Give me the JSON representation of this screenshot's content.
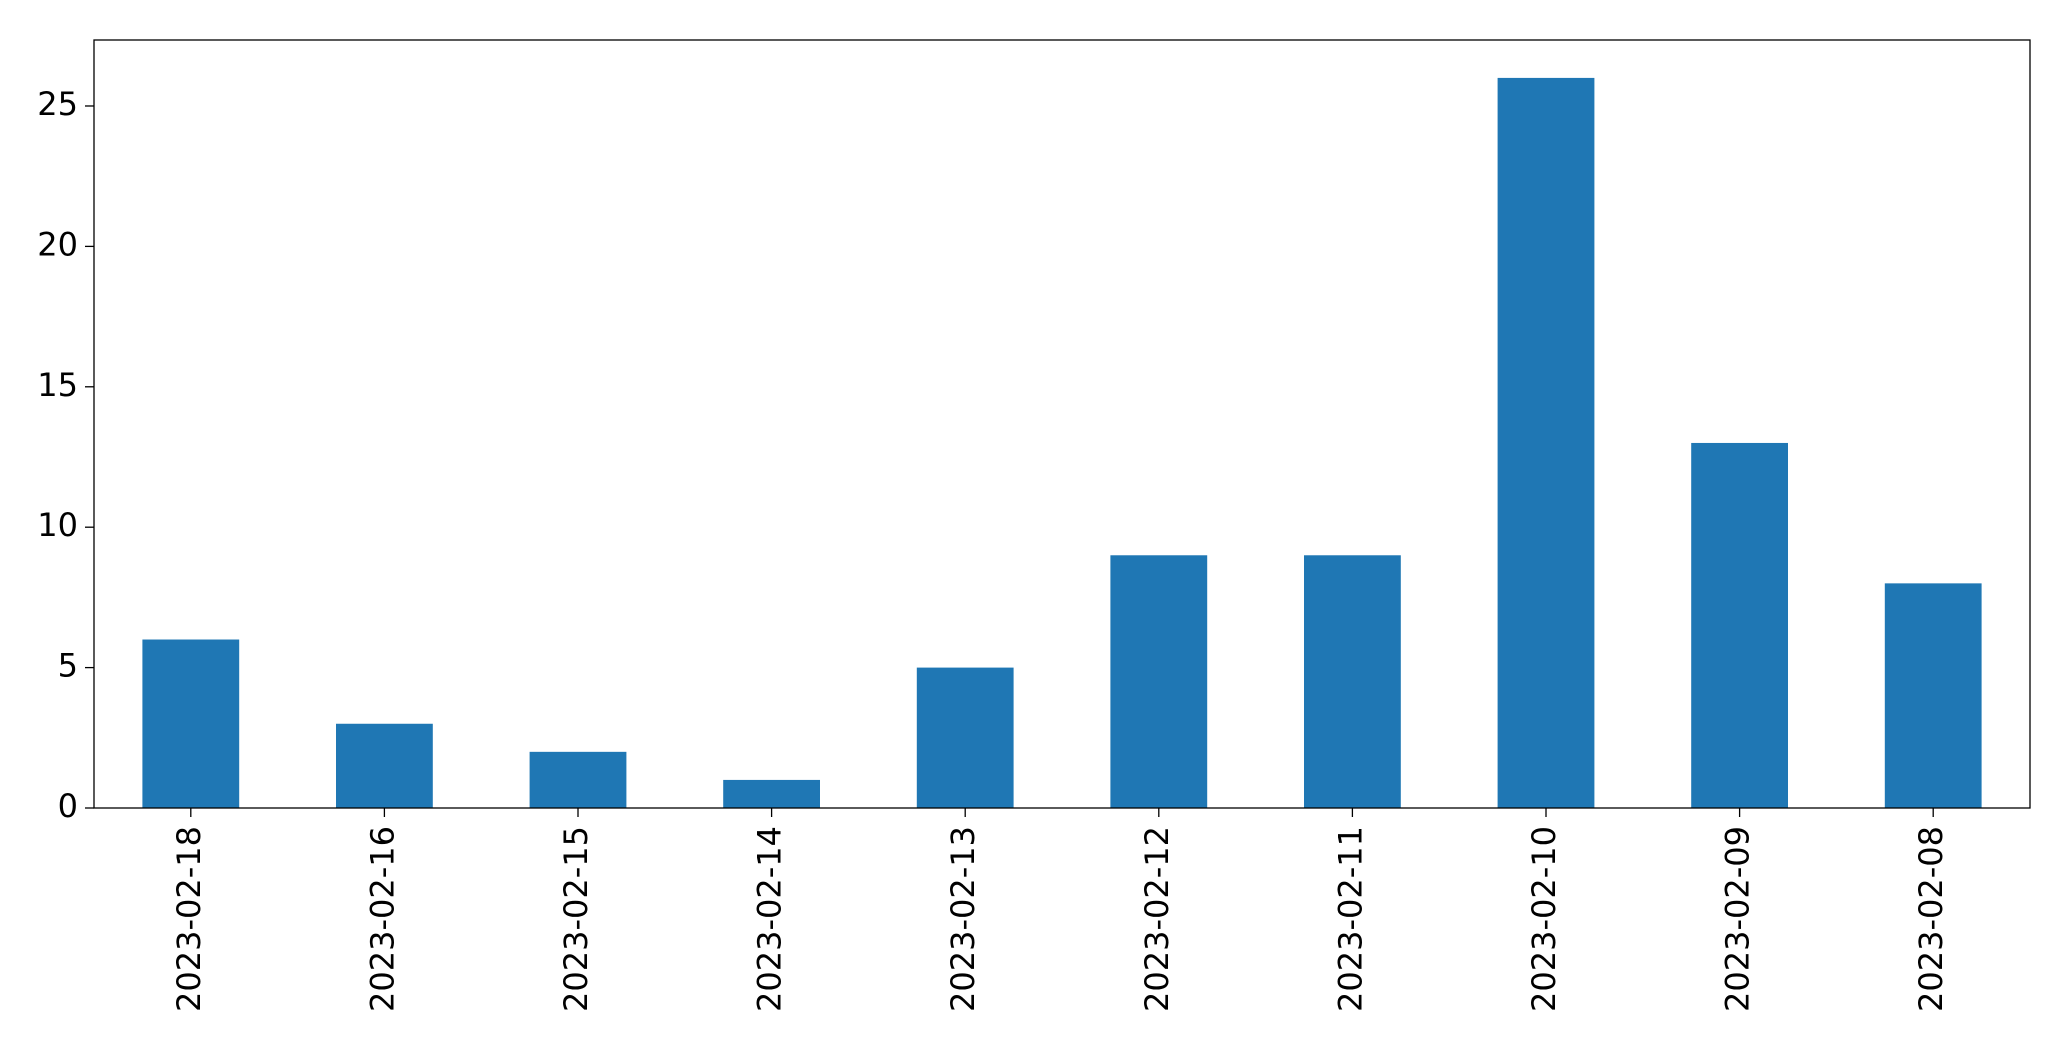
{
  "chart_data": {
    "type": "bar",
    "categories": [
      "2023-02-18",
      "2023-02-16",
      "2023-02-15",
      "2023-02-14",
      "2023-02-13",
      "2023-02-12",
      "2023-02-11",
      "2023-02-10",
      "2023-02-09",
      "2023-02-08"
    ],
    "values": [
      6,
      3,
      2,
      1,
      5,
      9,
      9,
      26,
      13,
      8
    ],
    "color": "#1f77b4",
    "ylim": [
      0,
      27.35
    ],
    "yticks": [
      0,
      5,
      10,
      15,
      20,
      25
    ],
    "grid": false
  }
}
